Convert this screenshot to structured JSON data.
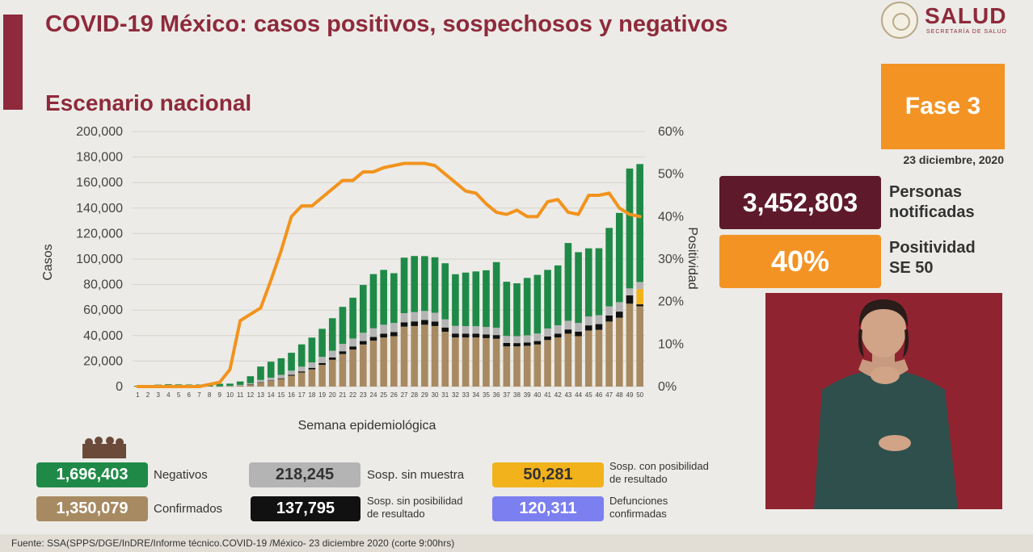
{
  "header": {
    "title": "COVID-19 México: casos positivos, sospechosos y negativos",
    "subtitle": "Escenario nacional",
    "logo_text": "SALUD",
    "logo_sub": "SECRETARÍA DE SALUD"
  },
  "phase": {
    "label": "Fase 3",
    "date": "23 diciembre, 2020"
  },
  "stats": {
    "persons_value": "3,452,803",
    "persons_label_1": "Personas",
    "persons_label_2": "notificadas",
    "positivity_value": "40%",
    "positivity_label_1": "Positividad",
    "positivity_label_2": "SE 50"
  },
  "legend": {
    "negativos": {
      "value": "1,696,403",
      "label": "Negativos",
      "color": "#1f8a47"
    },
    "sin_muestra": {
      "value": "218,245",
      "label": "Sosp. sin muestra",
      "color": "#b4b4b4"
    },
    "con_posibilidad": {
      "value": "50,281",
      "label_1": "Sosp. con posibilidad",
      "label_2": "de resultado",
      "color": "#f2b21b"
    },
    "confirmados": {
      "value": "1,350,079",
      "label": "Confirmados",
      "color": "#a88a62"
    },
    "sin_posibilidad": {
      "value": "137,795",
      "label_1": "Sosp. sin posibilidad",
      "label_2": "de resultado",
      "color": "#111111"
    },
    "defunciones": {
      "value": "120,311",
      "label_1": "Defunciones",
      "label_2": "confirmadas",
      "color": "#7b7ff0"
    }
  },
  "source": "Fuente: SSA(SPPS/DGE/InDRE/Informe técnico.COVID-19 /México- 23 diciembre 2020 (corte 9:00hrs)",
  "chart_data": {
    "type": "bar",
    "stacked": true,
    "xlabel": "Semana epidemiológica",
    "ylabel": "Casos",
    "y2label": "Positividad",
    "ylim": [
      0,
      200000
    ],
    "y2lim": [
      0,
      60
    ],
    "yticks": [
      "0",
      "20,000",
      "40,000",
      "60,000",
      "80,000",
      "100,000",
      "120,000",
      "140,000",
      "160,000",
      "180,000",
      "200,000"
    ],
    "y2ticks": [
      "0%",
      "10%",
      "20%",
      "30%",
      "40%",
      "50%",
      "60%"
    ],
    "categories": [
      "1",
      "2",
      "3",
      "4",
      "5",
      "6",
      "7",
      "8",
      "9",
      "10",
      "11",
      "12",
      "13",
      "14",
      "15",
      "16",
      "17",
      "18",
      "19",
      "20",
      "21",
      "22",
      "23",
      "24",
      "25",
      "26",
      "27",
      "28",
      "29",
      "30",
      "31",
      "32",
      "33",
      "34",
      "35",
      "36",
      "37",
      "38",
      "39",
      "40",
      "41",
      "42",
      "43",
      "44",
      "45",
      "46",
      "47",
      "48",
      "49",
      "50"
    ],
    "series": [
      {
        "name": "Confirmados",
        "color": "#a88a62",
        "values": [
          0,
          0,
          0,
          0,
          0,
          0,
          0,
          0,
          100,
          200,
          700,
          1500,
          3200,
          4500,
          6000,
          8500,
          11000,
          13500,
          17000,
          21000,
          25500,
          29000,
          33000,
          36000,
          38500,
          39500,
          47000,
          47500,
          48500,
          47500,
          43000,
          38500,
          38500,
          38500,
          38000,
          37500,
          31500,
          31500,
          32000,
          33000,
          36500,
          38500,
          41500,
          39500,
          44000,
          44500,
          51000,
          54000,
          65000,
          63000
        ]
      },
      {
        "name": "Sosp. sin posibilidad de resultado",
        "color": "#111111",
        "values": [
          0,
          0,
          0,
          0,
          0,
          0,
          0,
          0,
          0,
          0,
          0,
          100,
          200,
          300,
          500,
          700,
          900,
          1200,
          1500,
          1800,
          2200,
          2500,
          2700,
          2900,
          3000,
          3200,
          3400,
          3600,
          3700,
          3500,
          3300,
          3100,
          3000,
          3000,
          2900,
          2900,
          2700,
          2600,
          2600,
          2700,
          2800,
          3000,
          3300,
          3600,
          4000,
          4500,
          4700,
          4800,
          6500,
          1500
        ]
      },
      {
        "name": "Sosp. con posibilidad de resultado",
        "color": "#f2b21b",
        "values": [
          0,
          0,
          0,
          0,
          0,
          0,
          0,
          0,
          0,
          0,
          0,
          0,
          0,
          0,
          0,
          0,
          0,
          0,
          0,
          0,
          0,
          0,
          0,
          0,
          0,
          0,
          0,
          0,
          0,
          0,
          0,
          0,
          0,
          0,
          0,
          0,
          0,
          0,
          0,
          0,
          0,
          0,
          0,
          0,
          0,
          0,
          0,
          0,
          0,
          12000
        ]
      },
      {
        "name": "Sosp. sin muestra",
        "color": "#b4b4b4",
        "values": [
          0,
          0,
          0,
          0,
          0,
          0,
          0,
          0,
          100,
          300,
          600,
          1000,
          1800,
          2200,
          2700,
          3300,
          3700,
          4200,
          4800,
          5300,
          5800,
          6200,
          6500,
          6800,
          7000,
          7200,
          7200,
          7300,
          7100,
          6900,
          6400,
          6000,
          5900,
          5800,
          5800,
          5700,
          5500,
          5400,
          5600,
          5900,
          6200,
          6500,
          6800,
          6800,
          6900,
          7000,
          7200,
          7400,
          5500,
          5500
        ]
      },
      {
        "name": "Negativos",
        "color": "#1f8a47",
        "values": [
          600,
          1200,
          1500,
          1800,
          1700,
          1600,
          1600,
          1700,
          2000,
          1800,
          2700,
          5500,
          10500,
          12500,
          13000,
          14000,
          17500,
          19500,
          22000,
          25500,
          29000,
          32000,
          37500,
          42500,
          43000,
          39000,
          43500,
          44000,
          43000,
          43500,
          44000,
          40500,
          42000,
          43000,
          44500,
          51500,
          42500,
          41500,
          45000,
          46000,
          46000,
          47000,
          61000,
          55500,
          53500,
          52500,
          61500,
          70000,
          94000,
          92500
        ]
      }
    ],
    "line": {
      "name": "Positividad",
      "axis": "right",
      "color": "#f2931d",
      "values": [
        0,
        0,
        0,
        0,
        0,
        0,
        0,
        0.5,
        1,
        4,
        15.5,
        17,
        18.5,
        25,
        32,
        40,
        42.5,
        42.5,
        44.5,
        46.5,
        48.5,
        48.5,
        50.5,
        50.5,
        51.5,
        52,
        52.5,
        52.5,
        52.5,
        52,
        50,
        48,
        46,
        45.5,
        43,
        41,
        40.5,
        41.5,
        40,
        40,
        43.5,
        44,
        41,
        40.5,
        45,
        45,
        45.5,
        42,
        40.5,
        40
      ]
    }
  }
}
